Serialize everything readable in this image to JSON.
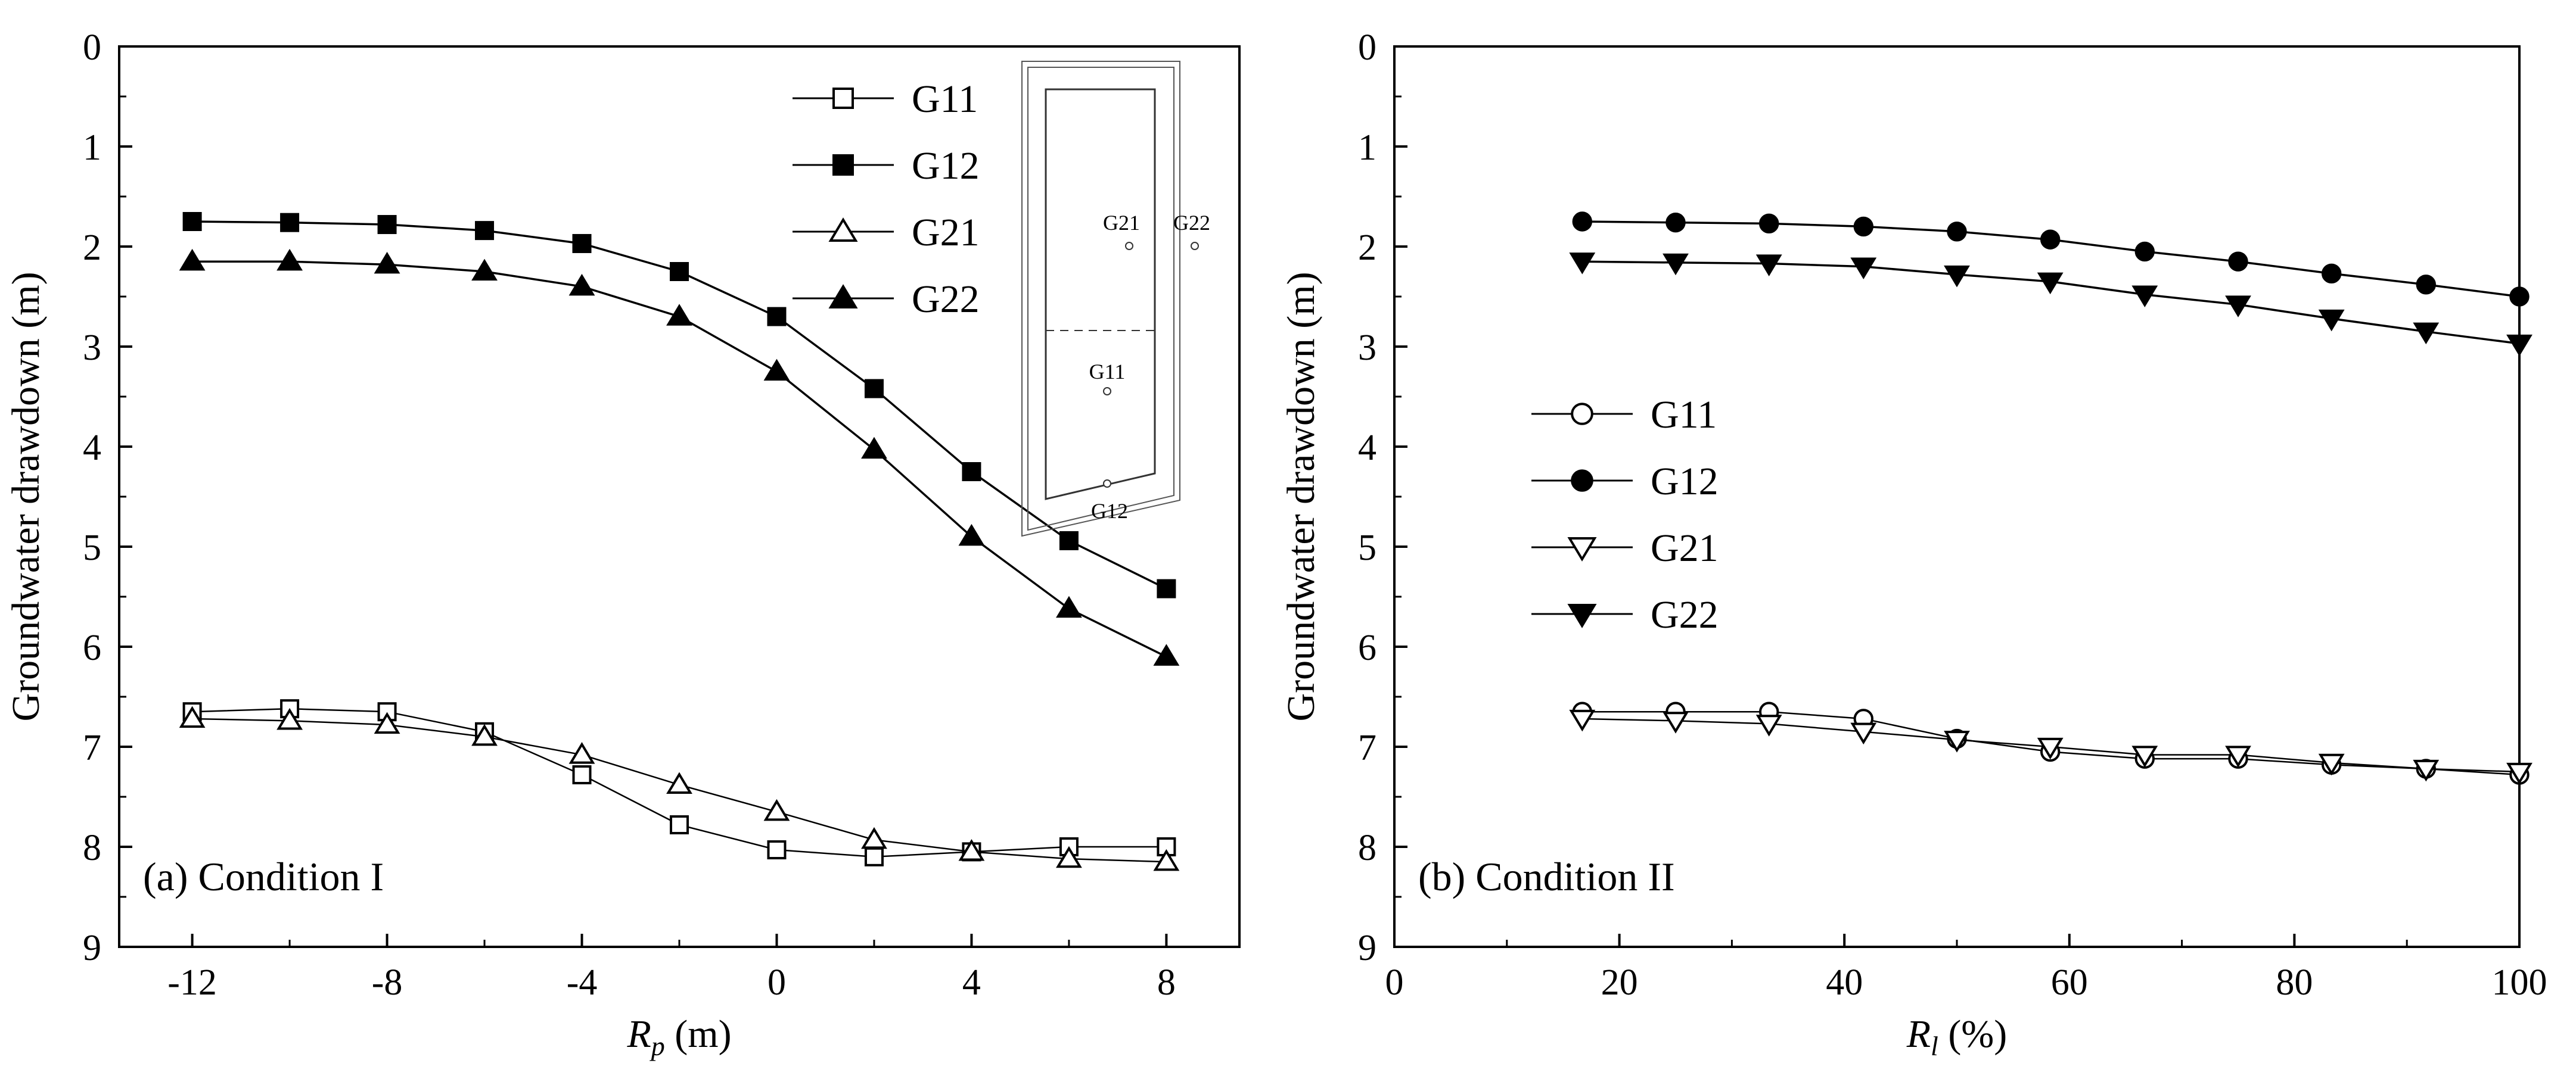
{
  "chart_data": [
    {
      "type": "line",
      "panel_label": "(a) Condition I",
      "xlabel_main": "R",
      "xlabel_sub": "p",
      "xlabel_unit": " (m)",
      "ylabel": "Groundwater drawdown (m)",
      "xlim": [
        -13.5,
        9.5
      ],
      "ylim": [
        0,
        9
      ],
      "y_inverted": true,
      "x_ticks": [
        -12,
        -8,
        -4,
        0,
        4,
        8
      ],
      "x_tick_labels": [
        "-12",
        "-8",
        "-4",
        "0",
        "4",
        "8"
      ],
      "y_ticks": [
        0,
        1,
        2,
        3,
        4,
        5,
        6,
        7,
        8,
        9
      ],
      "y_tick_labels": [
        "0",
        "1",
        "2",
        "3",
        "4",
        "5",
        "6",
        "7",
        "8",
        "9"
      ],
      "legend_position": "top-right",
      "x": [
        -12,
        -10,
        -8,
        -6,
        -4,
        -2,
        0,
        2,
        4,
        6,
        8
      ],
      "series": [
        {
          "name": "G11",
          "marker": "square",
          "filled": false,
          "values": [
            6.65,
            6.62,
            6.65,
            6.85,
            7.28,
            7.78,
            8.03,
            8.1,
            8.05,
            8.0,
            8.0
          ]
        },
        {
          "name": "G12",
          "marker": "square",
          "filled": true,
          "values": [
            1.75,
            1.76,
            1.78,
            1.84,
            1.97,
            2.25,
            2.7,
            3.42,
            4.25,
            4.94,
            5.42
          ]
        },
        {
          "name": "G21",
          "marker": "triangle-up",
          "filled": false,
          "values": [
            6.72,
            6.74,
            6.78,
            6.9,
            7.08,
            7.38,
            7.65,
            7.93,
            8.05,
            8.12,
            8.15
          ]
        },
        {
          "name": "G22",
          "marker": "triangle-up",
          "filled": true,
          "values": [
            2.15,
            2.15,
            2.18,
            2.25,
            2.4,
            2.7,
            3.25,
            4.03,
            4.9,
            5.62,
            6.1
          ]
        }
      ],
      "inset_labels": {
        "g21": "G21",
        "g22": "G22",
        "g11": "G11",
        "g12": "G12"
      }
    },
    {
      "type": "line",
      "panel_label": "(b) Condition II",
      "xlabel_main": "R",
      "xlabel_sub": "l",
      "xlabel_unit": " (%)",
      "ylabel": "Groundwater drawdown (m)",
      "xlim": [
        0,
        100
      ],
      "ylim": [
        0,
        9
      ],
      "y_inverted": true,
      "x_ticks": [
        0,
        20,
        40,
        60,
        80,
        100
      ],
      "x_tick_labels": [
        "0",
        "20",
        "40",
        "60",
        "80",
        "100"
      ],
      "y_ticks": [
        0,
        1,
        2,
        3,
        4,
        5,
        6,
        7,
        8,
        9
      ],
      "y_tick_labels": [
        "0",
        "1",
        "2",
        "3",
        "4",
        "5",
        "6",
        "7",
        "8",
        "9"
      ],
      "legend_position": "center-left",
      "x": [
        16.7,
        25,
        33.3,
        41.7,
        50,
        58.3,
        66.7,
        75,
        83.3,
        91.7,
        100
      ],
      "series": [
        {
          "name": "G11",
          "marker": "circle",
          "filled": false,
          "values": [
            6.65,
            6.65,
            6.65,
            6.72,
            6.92,
            7.05,
            7.12,
            7.12,
            7.18,
            7.22,
            7.28
          ]
        },
        {
          "name": "G12",
          "marker": "circle",
          "filled": true,
          "values": [
            1.75,
            1.76,
            1.77,
            1.8,
            1.85,
            1.93,
            2.05,
            2.15,
            2.27,
            2.38,
            2.5
          ]
        },
        {
          "name": "G21",
          "marker": "triangle-down",
          "filled": false,
          "values": [
            6.72,
            6.74,
            6.77,
            6.85,
            6.93,
            7.0,
            7.08,
            7.08,
            7.16,
            7.22,
            7.25
          ]
        },
        {
          "name": "G22",
          "marker": "triangle-down",
          "filled": true,
          "values": [
            2.15,
            2.16,
            2.17,
            2.2,
            2.28,
            2.35,
            2.48,
            2.58,
            2.72,
            2.85,
            2.97
          ]
        }
      ]
    }
  ]
}
